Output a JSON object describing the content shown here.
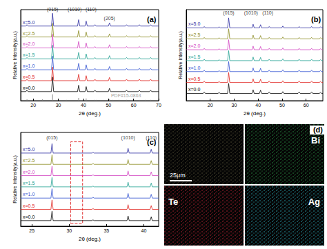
{
  "chart_data": [
    {
      "type": "line",
      "title": "(a)",
      "xlabel": "2θ (deg.)",
      "ylabel": "Relative Intensity(a.u.)",
      "xlim": [
        15,
        70
      ],
      "xticks": [
        20,
        30,
        40,
        50,
        60,
        70
      ],
      "ylim": [
        0,
        100
      ],
      "tick_labels": "x",
      "grid": false,
      "series": [
        {
          "name": "x=0.0",
          "color": "#000000",
          "baseline": 10,
          "peaks": [
            [
              17.5,
              11.5
            ],
            [
              27.7,
              26
            ],
            [
              38.1,
              17
            ],
            [
              41.1,
              15.5
            ],
            [
              44.6,
              11.5
            ],
            [
              50.4,
              13.5
            ],
            [
              57.2,
              11.5
            ],
            [
              62.3,
              11.5
            ],
            [
              66.8,
              11.5
            ]
          ]
        },
        {
          "name": "x=0.5",
          "color": "#e0201b",
          "baseline": 22,
          "peaks": [
            [
              17.5,
              23.5
            ],
            [
              27.7,
              37
            ],
            [
              38.1,
              29
            ],
            [
              41.1,
              27.5
            ],
            [
              44.6,
              23.5
            ],
            [
              50.4,
              25.5
            ],
            [
              57.2,
              23.5
            ],
            [
              62.3,
              23.5
            ],
            [
              66.8,
              23.5
            ]
          ]
        },
        {
          "name": "x=1.0",
          "color": "#3050d0",
          "baseline": 34,
          "peaks": [
            [
              17.5,
              35.5
            ],
            [
              27.7,
              49
            ],
            [
              38.1,
              41
            ],
            [
              41.1,
              39.5
            ],
            [
              44.6,
              35.5
            ],
            [
              50.4,
              37.5
            ],
            [
              57.2,
              35.5
            ],
            [
              62.3,
              35.5
            ],
            [
              66.8,
              35.5
            ]
          ]
        },
        {
          "name": "x=1.5",
          "color": "#20a090",
          "baseline": 46,
          "peaks": [
            [
              17.5,
              47.5
            ],
            [
              27.7,
              61
            ],
            [
              38.1,
              53
            ],
            [
              41.1,
              51.5
            ],
            [
              44.6,
              47.5
            ],
            [
              50.4,
              49.5
            ],
            [
              57.2,
              47.5
            ],
            [
              62.3,
              47.5
            ],
            [
              66.8,
              47.5
            ]
          ]
        },
        {
          "name": "x=2.0",
          "color": "#d040c0",
          "baseline": 58,
          "peaks": [
            [
              17.5,
              59.5
            ],
            [
              27.7,
              73
            ],
            [
              38.1,
              65
            ],
            [
              41.1,
              63.5
            ],
            [
              44.6,
              59.5
            ],
            [
              50.4,
              61.5
            ],
            [
              57.2,
              59.5
            ],
            [
              62.3,
              59.5
            ],
            [
              66.8,
              59.5
            ]
          ]
        },
        {
          "name": "x=2.5",
          "color": "#8a8a20",
          "baseline": 70,
          "peaks": [
            [
              17.5,
              71.5
            ],
            [
              27.7,
              85
            ],
            [
              38.1,
              77
            ],
            [
              41.1,
              75.5
            ],
            [
              44.6,
              71.5
            ],
            [
              50.4,
              73.5
            ],
            [
              57.2,
              71.5
            ],
            [
              62.3,
              71.5
            ],
            [
              66.8,
              71.5
            ]
          ]
        },
        {
          "name": "x=5.0",
          "color": "#2a2aa0",
          "baseline": 82,
          "peaks": [
            [
              17.5,
              83.5
            ],
            [
              27.7,
              96
            ],
            [
              38.1,
              89
            ],
            [
              41.1,
              87.5
            ],
            [
              44.6,
              83.5
            ],
            [
              50.4,
              85.5
            ],
            [
              57.2,
              83.5
            ],
            [
              62.3,
              83.5
            ],
            [
              66.8,
              83.5
            ]
          ]
        }
      ],
      "reference": {
        "color": "#888888",
        "x": [
          17.5,
          23.7,
          27.7,
          33.2,
          38.1,
          41.1,
          44.6,
          45.2,
          50.4,
          51.8,
          54.2,
          57.2,
          62.3,
          64.7,
          66.8
        ],
        "values": [
          1.5,
          1.5,
          7,
          1,
          3,
          2.5,
          1,
          1,
          1.5,
          1,
          1,
          1,
          1,
          1,
          1
        ]
      },
      "annotations": [
        {
          "text": "(015)",
          "x": 27.7,
          "y": 97
        },
        {
          "text": "(1010)",
          "x": 36.5,
          "y": 97
        },
        {
          "text": "(110)",
          "x": 43,
          "y": 97
        },
        {
          "text": "(205)",
          "x": 50.4,
          "y": 87
        },
        {
          "text": "PDF#15-0863",
          "x": 57,
          "y": 2.5,
          "color": "#888888"
        }
      ]
    },
    {
      "type": "line",
      "title": "(b)",
      "xlabel": "2θ (deg.)",
      "ylabel": "Relative Intensity(a.u.)",
      "xlim": [
        10,
        67
      ],
      "xticks": [
        20,
        30,
        40,
        50,
        60
      ],
      "ylim": [
        0,
        100
      ],
      "tick_labels": "x",
      "grid": false,
      "series": [
        {
          "name": "x=0.0",
          "color": "#000000",
          "baseline": 8,
          "peaks": [
            [
              17.5,
              9.5
            ],
            [
              23.7,
              9
            ],
            [
              27.7,
              19
            ],
            [
              37.9,
              12
            ],
            [
              41.0,
              11.5
            ],
            [
              44.6,
              9.5
            ],
            [
              50.3,
              10
            ],
            [
              57.1,
              9.5
            ],
            [
              62.3,
              9.5
            ],
            [
              66.0,
              9
            ]
          ]
        },
        {
          "name": "x=0.5",
          "color": "#e0201b",
          "baseline": 20,
          "peaks": [
            [
              17.5,
              21.5
            ],
            [
              23.7,
              21
            ],
            [
              27.7,
              31
            ],
            [
              37.9,
              24
            ],
            [
              41.0,
              23.5
            ],
            [
              44.6,
              21.5
            ],
            [
              50.3,
              22
            ],
            [
              57.1,
              21.5
            ],
            [
              62.3,
              21.5
            ],
            [
              66.0,
              21
            ]
          ]
        },
        {
          "name": "x=1.0",
          "color": "#3050d0",
          "baseline": 32,
          "peaks": [
            [
              17.5,
              33.5
            ],
            [
              23.7,
              33
            ],
            [
              27.7,
              43
            ],
            [
              37.9,
              36
            ],
            [
              41.0,
              35.5
            ],
            [
              44.6,
              33.5
            ],
            [
              50.3,
              34
            ],
            [
              57.1,
              33.5
            ],
            [
              62.3,
              33.5
            ],
            [
              66.0,
              33
            ]
          ]
        },
        {
          "name": "x=1.5",
          "color": "#20a090",
          "baseline": 44,
          "peaks": [
            [
              17.5,
              45.5
            ],
            [
              23.7,
              45
            ],
            [
              27.7,
              55
            ],
            [
              37.9,
              48
            ],
            [
              41.0,
              47.5
            ],
            [
              44.6,
              45.5
            ],
            [
              50.3,
              46
            ],
            [
              57.1,
              45.5
            ],
            [
              62.3,
              45.5
            ],
            [
              66.0,
              45
            ]
          ]
        },
        {
          "name": "x=2.0",
          "color": "#d040c0",
          "baseline": 56,
          "peaks": [
            [
              17.5,
              57.5
            ],
            [
              23.7,
              57
            ],
            [
              27.7,
              67
            ],
            [
              37.9,
              60
            ],
            [
              41.0,
              59.5
            ],
            [
              44.6,
              57.5
            ],
            [
              50.3,
              58
            ],
            [
              57.1,
              57.5
            ],
            [
              62.3,
              57.5
            ],
            [
              66.0,
              57
            ]
          ]
        },
        {
          "name": "x=2.5",
          "color": "#8a8a20",
          "baseline": 68,
          "peaks": [
            [
              17.5,
              69.5
            ],
            [
              23.7,
              69
            ],
            [
              27.7,
              79
            ],
            [
              37.9,
              72
            ],
            [
              41.0,
              71.5
            ],
            [
              44.6,
              69.5
            ],
            [
              50.3,
              70
            ],
            [
              57.1,
              69.5
            ],
            [
              62.3,
              69.5
            ],
            [
              66.0,
              69
            ]
          ]
        },
        {
          "name": "x=5.0",
          "color": "#2a2aa0",
          "baseline": 80,
          "peaks": [
            [
              17.5,
              81.5
            ],
            [
              23.7,
              81
            ],
            [
              27.7,
              91
            ],
            [
              37.9,
              84
            ],
            [
              41.0,
              83.5
            ],
            [
              44.6,
              81.5
            ],
            [
              50.3,
              82
            ],
            [
              57.1,
              81.5
            ],
            [
              62.3,
              81.5
            ],
            [
              66.0,
              81
            ]
          ]
        }
      ],
      "annotations": [
        {
          "text": "(015)",
          "x": 27.7,
          "y": 93
        },
        {
          "text": "(1010)",
          "x": 37,
          "y": 93
        },
        {
          "text": "(110)",
          "x": 44,
          "y": 93
        }
      ]
    },
    {
      "type": "line",
      "title": "(c)",
      "xlabel": "2θ (deg.)",
      "ylabel": "Relative Intensity(a.u.)",
      "xlim": [
        23.5,
        42
      ],
      "xticks": [
        25,
        30,
        35,
        40
      ],
      "ylim": [
        0,
        100
      ],
      "tick_labels": "x",
      "grid": false,
      "series": [
        {
          "name": "x=0.0",
          "color": "#000000",
          "baseline": 6,
          "peaks": [
            [
              27.7,
              16
            ],
            [
              33.2,
              6.8
            ],
            [
              37.9,
              11
            ],
            [
              41.0,
              10
            ]
          ]
        },
        {
          "name": "x=0.5",
          "color": "#e0201b",
          "baseline": 18,
          "peaks": [
            [
              27.7,
              28
            ],
            [
              33.2,
              18.8
            ],
            [
              37.9,
              23
            ],
            [
              41.0,
              22
            ]
          ]
        },
        {
          "name": "x=1.0",
          "color": "#3050d0",
          "baseline": 30,
          "peaks": [
            [
              27.7,
              40
            ],
            [
              33.2,
              30.8
            ],
            [
              37.9,
              35
            ],
            [
              41.0,
              34
            ]
          ]
        },
        {
          "name": "x=1.5",
          "color": "#20a090",
          "baseline": 42,
          "peaks": [
            [
              27.7,
              52
            ],
            [
              33.2,
              42.8
            ],
            [
              37.9,
              47
            ],
            [
              41.0,
              46
            ]
          ]
        },
        {
          "name": "x=2.0",
          "color": "#d040c0",
          "baseline": 54,
          "peaks": [
            [
              27.7,
              64
            ],
            [
              33.2,
              54.8
            ],
            [
              37.9,
              59
            ],
            [
              41.0,
              58
            ]
          ]
        },
        {
          "name": "x=2.5",
          "color": "#8a8a20",
          "baseline": 66,
          "peaks": [
            [
              27.7,
              76
            ],
            [
              33.2,
              66.8
            ],
            [
              37.9,
              71
            ],
            [
              41.0,
              70
            ]
          ]
        },
        {
          "name": "x=5.0",
          "color": "#2a2aa0",
          "baseline": 78,
          "peaks": [
            [
              27.7,
              88
            ],
            [
              33.2,
              78.8
            ],
            [
              37.9,
              83
            ],
            [
              41.0,
              82
            ]
          ]
        }
      ],
      "box": {
        "xlim": [
          30.2,
          31.8
        ],
        "ylim": [
          3,
          90
        ],
        "color": "#e03030",
        "line_style": "dashed"
      },
      "annotations": [
        {
          "text": "(015)",
          "x": 27.7,
          "y": 91
        },
        {
          "text": "(1010)",
          "x": 37.9,
          "y": 91
        },
        {
          "text": "(110)",
          "x": 41.0,
          "y": 91
        }
      ]
    }
  ],
  "panel_d": {
    "label": "(d)",
    "scale_bar": "25μm",
    "tiles": [
      {
        "color": "#b0a870"
      },
      {
        "label": "Bi",
        "color": "#2fa84f"
      },
      {
        "label": "Te",
        "color": "#d8283a"
      },
      {
        "label": "Ag",
        "color": "#30c0d0"
      }
    ]
  }
}
